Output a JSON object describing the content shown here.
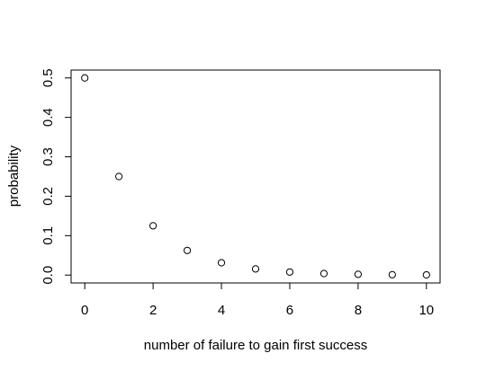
{
  "chart_data": {
    "type": "scatter",
    "title": "",
    "xlabel": "number of failure to gain first success",
    "ylabel": "probability",
    "x": [
      0,
      1,
      2,
      3,
      4,
      5,
      6,
      7,
      8,
      9,
      10
    ],
    "y": [
      0.5,
      0.25,
      0.125,
      0.0625,
      0.03125,
      0.015625,
      0.0078125,
      0.00390625,
      0.001953125,
      0.0009765625,
      0.00048828125
    ],
    "xlim": [
      -0.4,
      10.4
    ],
    "ylim": [
      -0.02,
      0.52
    ],
    "xticks": [
      0,
      2,
      4,
      6,
      8,
      10
    ],
    "yticks": [
      0.0,
      0.1,
      0.2,
      0.3,
      0.4,
      0.5
    ],
    "xtick_labels": [
      "0",
      "2",
      "4",
      "6",
      "8",
      "10"
    ],
    "ytick_labels": [
      "0.0",
      "0.1",
      "0.2",
      "0.3",
      "0.4",
      "0.5"
    ],
    "grid": false,
    "legend": "none",
    "marker": "open-circle",
    "color": "#000000"
  }
}
